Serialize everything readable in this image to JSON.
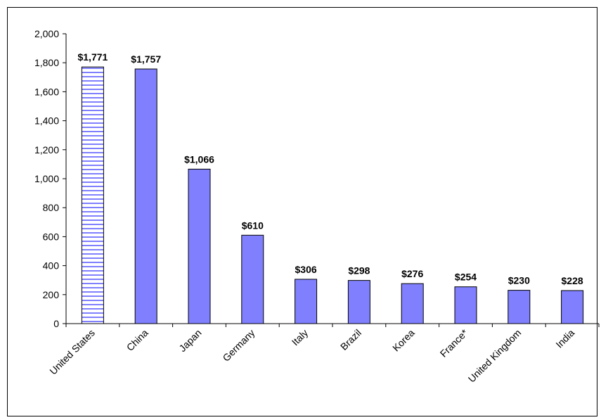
{
  "chart_data": {
    "type": "bar",
    "title": "",
    "xlabel": "",
    "ylabel": "",
    "ylim": [
      0,
      2000
    ],
    "ytick_step": 200,
    "yticks": [
      "0",
      "200",
      "400",
      "600",
      "800",
      "1,000",
      "1,200",
      "1,400",
      "1,600",
      "1,800",
      "2,000"
    ],
    "grid": false,
    "legend": "none",
    "categories": [
      "United States",
      "China",
      "Japan",
      "Germany",
      "Italy",
      "Brazil",
      "Korea",
      "France*",
      "United Kingdom",
      "India"
    ],
    "values": [
      1771,
      1757,
      1066,
      610,
      306,
      298,
      276,
      254,
      230,
      228
    ],
    "data_labels": [
      "$1,771",
      "$1,757",
      "$1,066",
      "$610",
      "$306",
      "$298",
      "$276",
      "$254",
      "$230",
      "$228"
    ],
    "colors": {
      "bar_fill": "#8080ff",
      "highlight_stripe": "#8080ff",
      "highlight_background": "#ffffff",
      "outline": "#000000"
    },
    "highlight_pattern": "horizontal-stripes",
    "highlight_index": 0
  }
}
